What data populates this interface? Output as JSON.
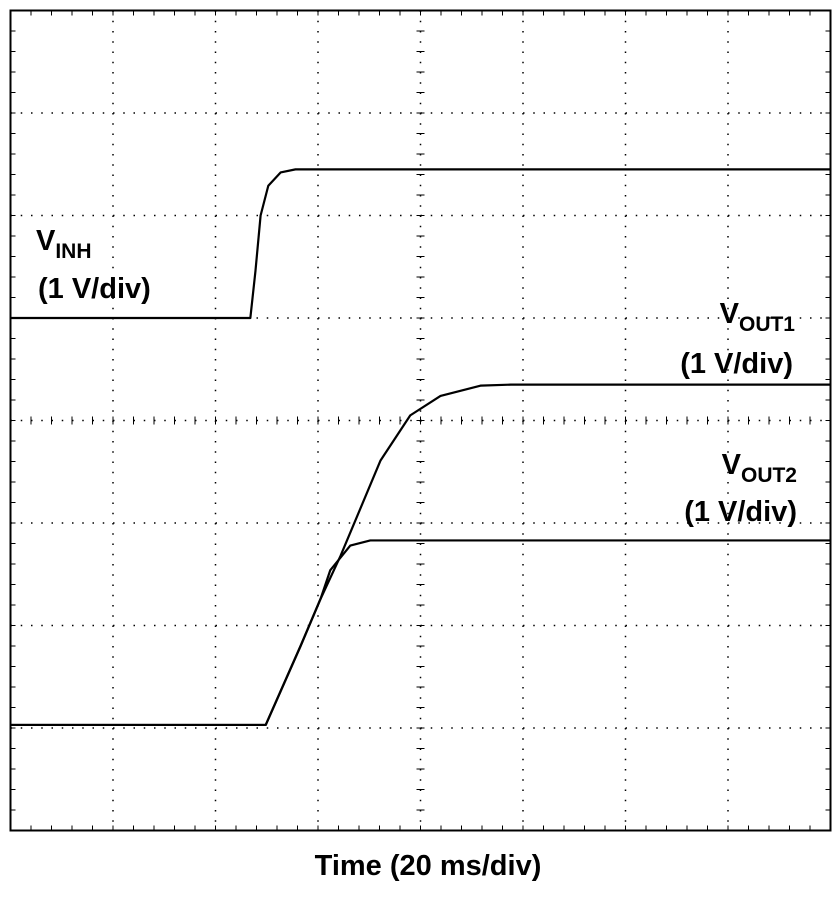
{
  "chart_data": {
    "type": "line",
    "x_label": "Time (20 ms/div)",
    "xlim": [
      0,
      160
    ],
    "ylim": [
      0,
      8
    ],
    "xticks": [
      0,
      20,
      40,
      60,
      80,
      100,
      120,
      140,
      160
    ],
    "yticks": [
      0,
      1,
      2,
      3,
      4,
      5,
      6,
      7,
      8
    ],
    "grid": true,
    "series": [
      {
        "label": "V",
        "label_sub": "INH",
        "scale_label": "(1 V/div)",
        "color": "#000000",
        "x": [
          0,
          46.8,
          47.8,
          48.8,
          50.3,
          52.7,
          55.6,
          160
        ],
        "values": [
          5.0,
          5.0,
          5.46,
          6.0,
          6.29,
          6.42,
          6.45,
          6.45
        ]
      },
      {
        "label": "V",
        "label_sub": "OUT1",
        "scale_label": "(1 V/div)",
        "color": "#000000",
        "x": [
          0,
          49.8,
          56.6,
          60.5,
          64.4,
          72.2,
          78.0,
          83.9,
          91.7,
          97.6,
          160
        ],
        "values": [
          1.03,
          1.03,
          1.8,
          2.26,
          2.68,
          3.61,
          4.05,
          4.24,
          4.34,
          4.35,
          4.35
        ]
      },
      {
        "label": "V",
        "label_sub": "OUT2",
        "scale_label": "(1 V/div)",
        "color": "#000000",
        "x": [
          0,
          49.8,
          56.6,
          60.5,
          62.4,
          66.3,
          70.2,
          74.1,
          160
        ],
        "values": [
          1.03,
          1.03,
          1.8,
          2.26,
          2.54,
          2.78,
          2.83,
          2.83,
          2.83
        ]
      }
    ]
  }
}
